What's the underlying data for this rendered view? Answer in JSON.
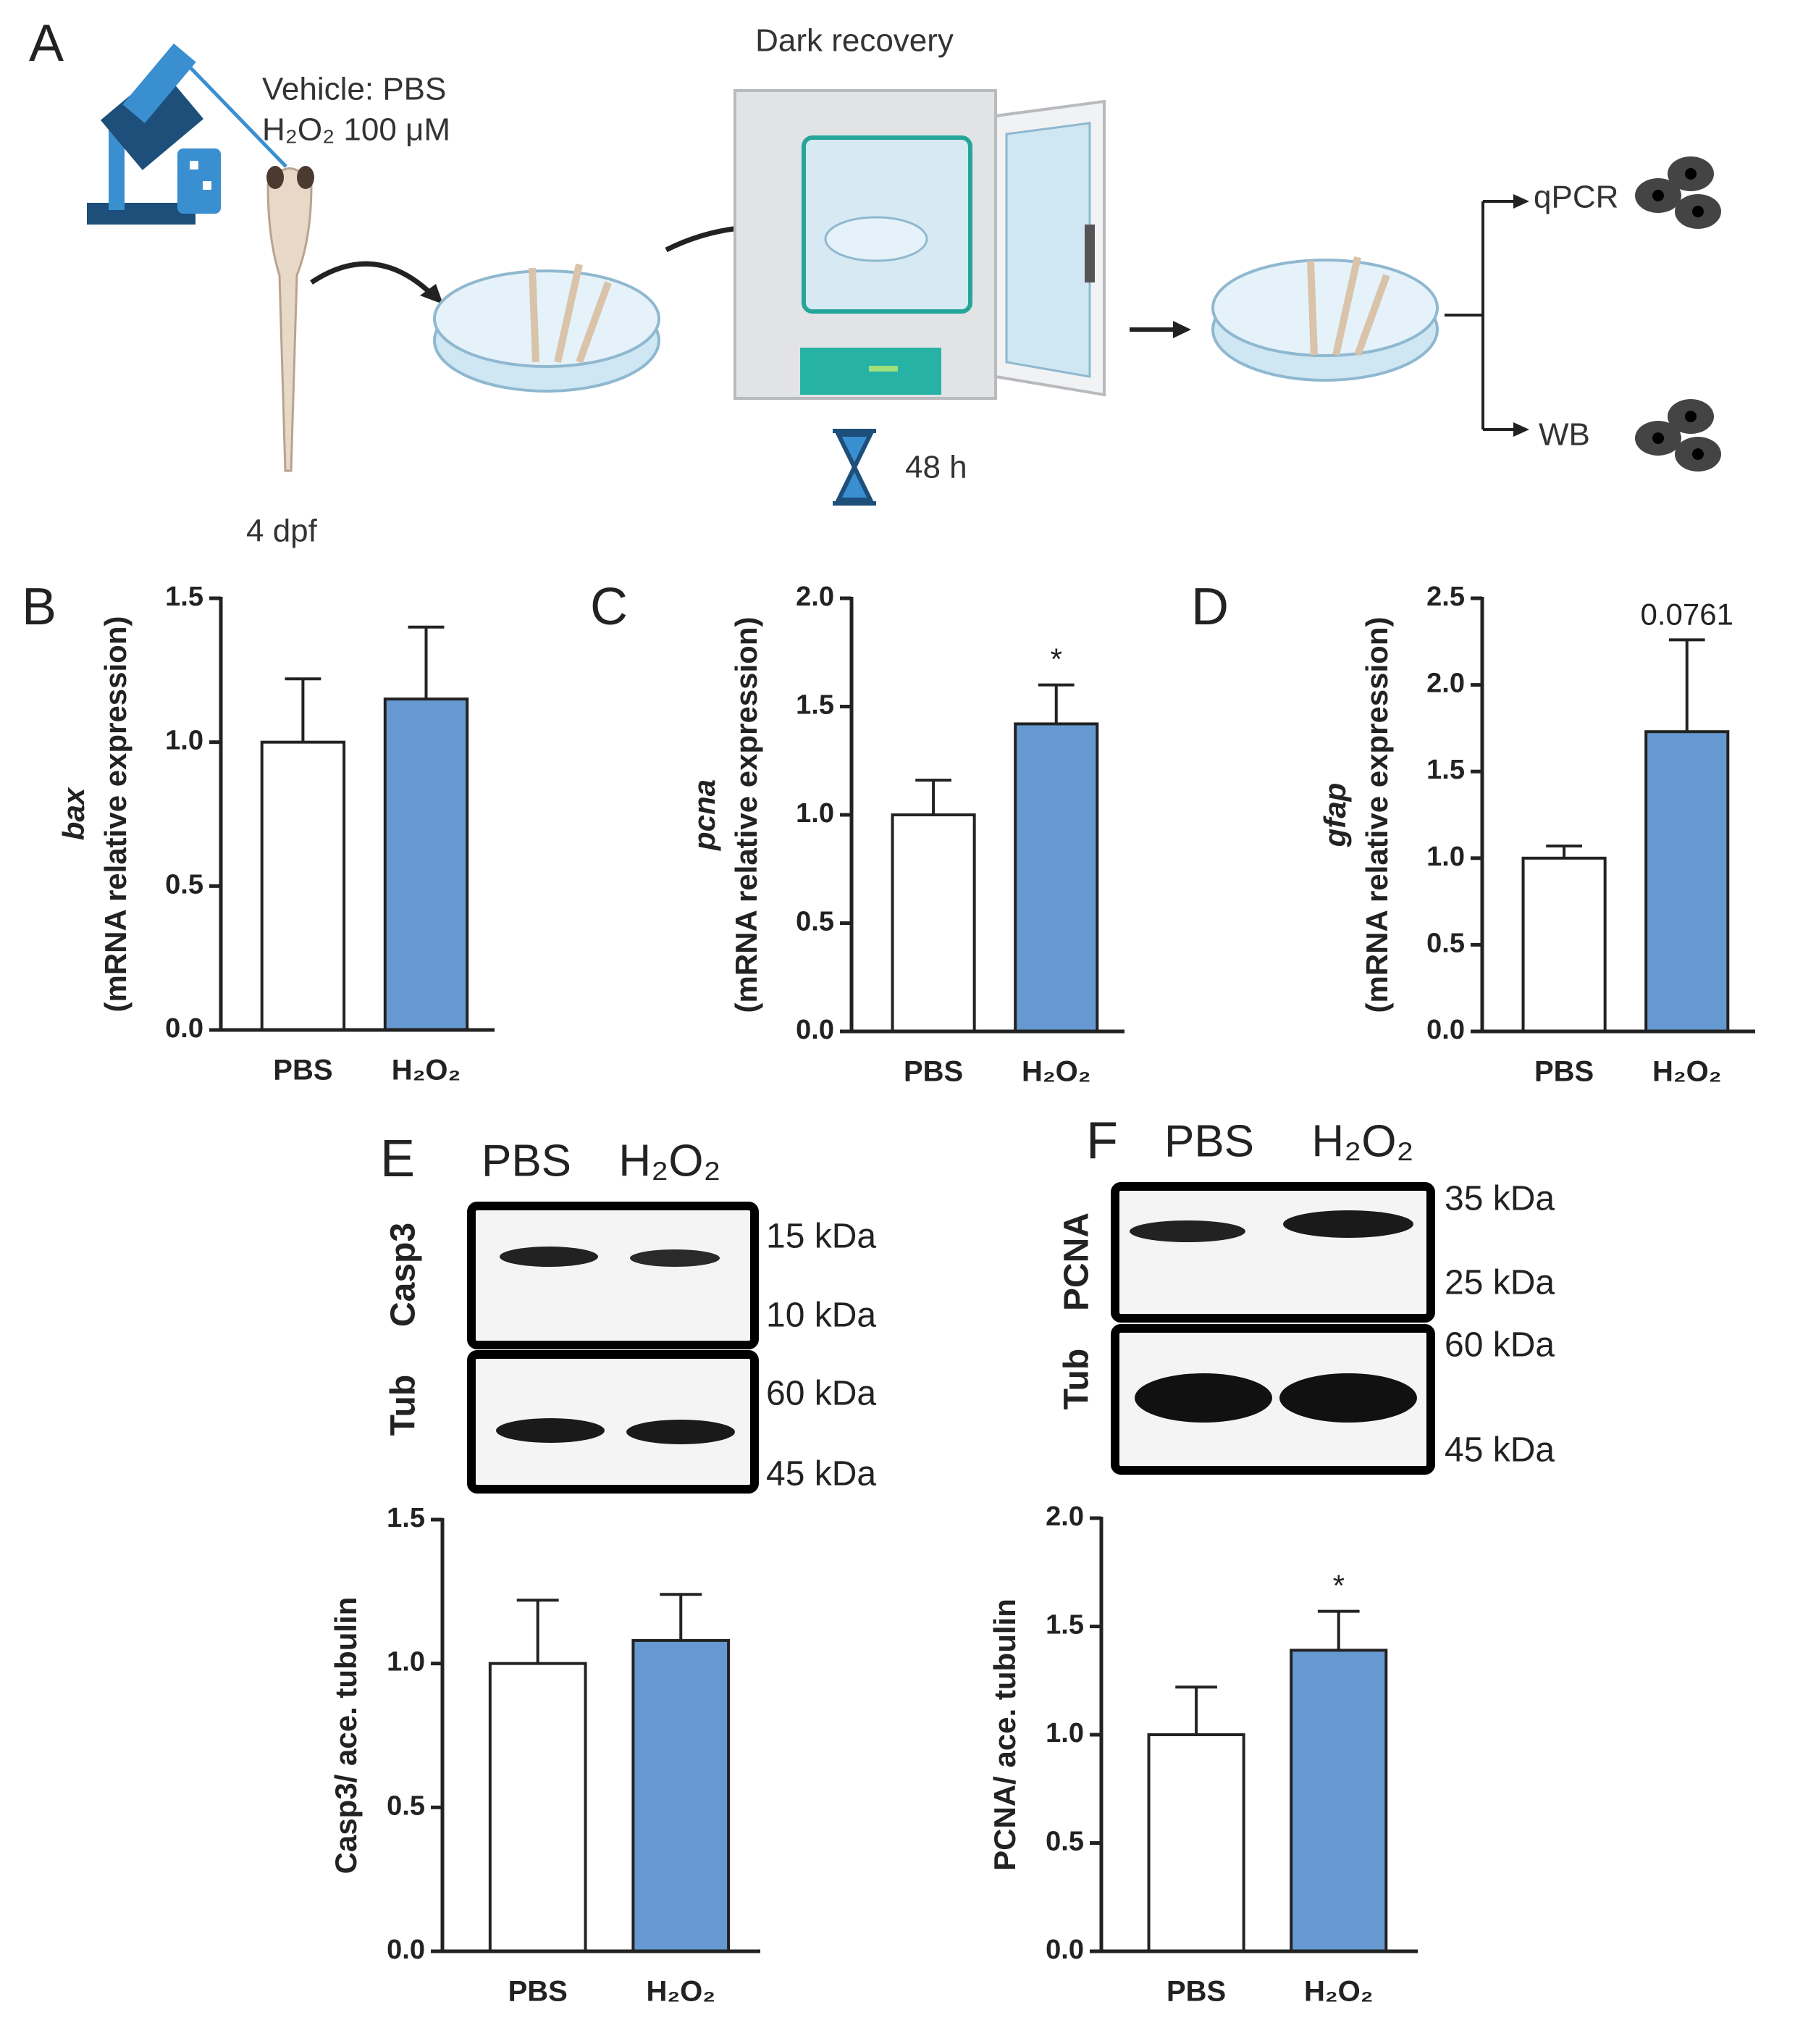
{
  "panels": {
    "a": "A",
    "b": "B",
    "c": "C",
    "d": "D",
    "e": "E",
    "f": "F"
  },
  "schematic": {
    "vehicle": "Vehicle: PBS",
    "treatment": "H₂O₂ 100 μM",
    "age": "4 dpf",
    "recovery": "Dark recovery",
    "duration": "48 h",
    "qpcr": "qPCR",
    "wb": "WB"
  },
  "blots": [
    {
      "lanes": [
        "PBS",
        "H₂O₂"
      ],
      "rows": [
        "Casp3",
        "Tub"
      ],
      "markers": [
        "15 kDa",
        "10 kDa",
        "60 kDa",
        "45 kDa"
      ]
    },
    {
      "lanes": [
        "PBS",
        "H₂O₂"
      ],
      "rows": [
        "PCNA",
        "Tub"
      ],
      "markers": [
        "35 kDa",
        "25 kDa",
        "60 kDa",
        "45 kDa"
      ]
    }
  ],
  "chart_data": [
    {
      "type": "bar",
      "ylabel_gene": "bax",
      "ylabel": "(mRNA relative expression)",
      "categories": [
        "PBS",
        "H₂O₂"
      ],
      "values": [
        1.0,
        1.15
      ],
      "errors": [
        0.22,
        0.25
      ],
      "colors": [
        "#ffffff",
        "#6699d1"
      ],
      "ylim": [
        0,
        1.5
      ],
      "yticks": [
        {
          "value": 0,
          "label": "0.0"
        },
        0.5,
        {
          "value": 1,
          "label": "1.0"
        },
        1.5
      ]
    },
    {
      "type": "bar",
      "ylabel_gene": "pcna",
      "ylabel": "(mRNA relative expression)",
      "categories": [
        "PBS",
        "H₂O₂"
      ],
      "values": [
        1.0,
        1.42
      ],
      "errors": [
        0.16,
        0.18
      ],
      "colors": [
        "#ffffff",
        "#6699d1"
      ],
      "annotation": {
        "text": "*",
        "category": "H₂O₂"
      },
      "ylim": [
        0,
        2
      ],
      "yticks": [
        {
          "value": 0,
          "label": "0.0"
        },
        0.5,
        {
          "value": 1,
          "label": "1.0"
        },
        1.5,
        {
          "value": 2,
          "label": "2.0"
        }
      ]
    },
    {
      "type": "bar",
      "ylabel_gene": "gfap",
      "ylabel": "(mRNA relative expression)",
      "categories": [
        "PBS",
        "H₂O₂"
      ],
      "values": [
        1.0,
        1.73
      ],
      "errors": [
        0.07,
        0.53
      ],
      "colors": [
        "#ffffff",
        "#6699d1"
      ],
      "annotation": {
        "text": "0.0761",
        "category": "H₂O₂"
      },
      "ylim": [
        0,
        2.5
      ],
      "yticks": [
        {
          "value": 0,
          "label": "0.0"
        },
        0.5,
        {
          "value": 1,
          "label": "1.0"
        },
        1.5,
        {
          "value": 2,
          "label": "2.0"
        },
        2.5
      ]
    },
    {
      "type": "bar",
      "ylabel": "Casp3/ ace. tubulin",
      "categories": [
        "PBS",
        "H₂O₂"
      ],
      "values": [
        1.0,
        1.08
      ],
      "errors": [
        0.22,
        0.16
      ],
      "colors": [
        "#ffffff",
        "#6699d1"
      ],
      "ylim": [
        0,
        1.5
      ],
      "yticks": [
        {
          "value": 0,
          "label": "0.0"
        },
        0.5,
        {
          "value": 1,
          "label": "1.0"
        },
        1.5
      ]
    },
    {
      "type": "bar",
      "ylabel": "PCNA/ ace. tubulin",
      "categories": [
        "PBS",
        "H₂O₂"
      ],
      "values": [
        1.0,
        1.39
      ],
      "errors": [
        0.22,
        0.18
      ],
      "colors": [
        "#ffffff",
        "#6699d1"
      ],
      "annotation": {
        "text": "*",
        "category": "H₂O₂"
      },
      "ylim": [
        0,
        2
      ],
      "yticks": [
        {
          "value": 0,
          "label": "0.0"
        },
        0.5,
        {
          "value": 1,
          "label": "1.0"
        },
        1.5,
        {
          "value": 2,
          "label": "2.0"
        }
      ]
    }
  ]
}
